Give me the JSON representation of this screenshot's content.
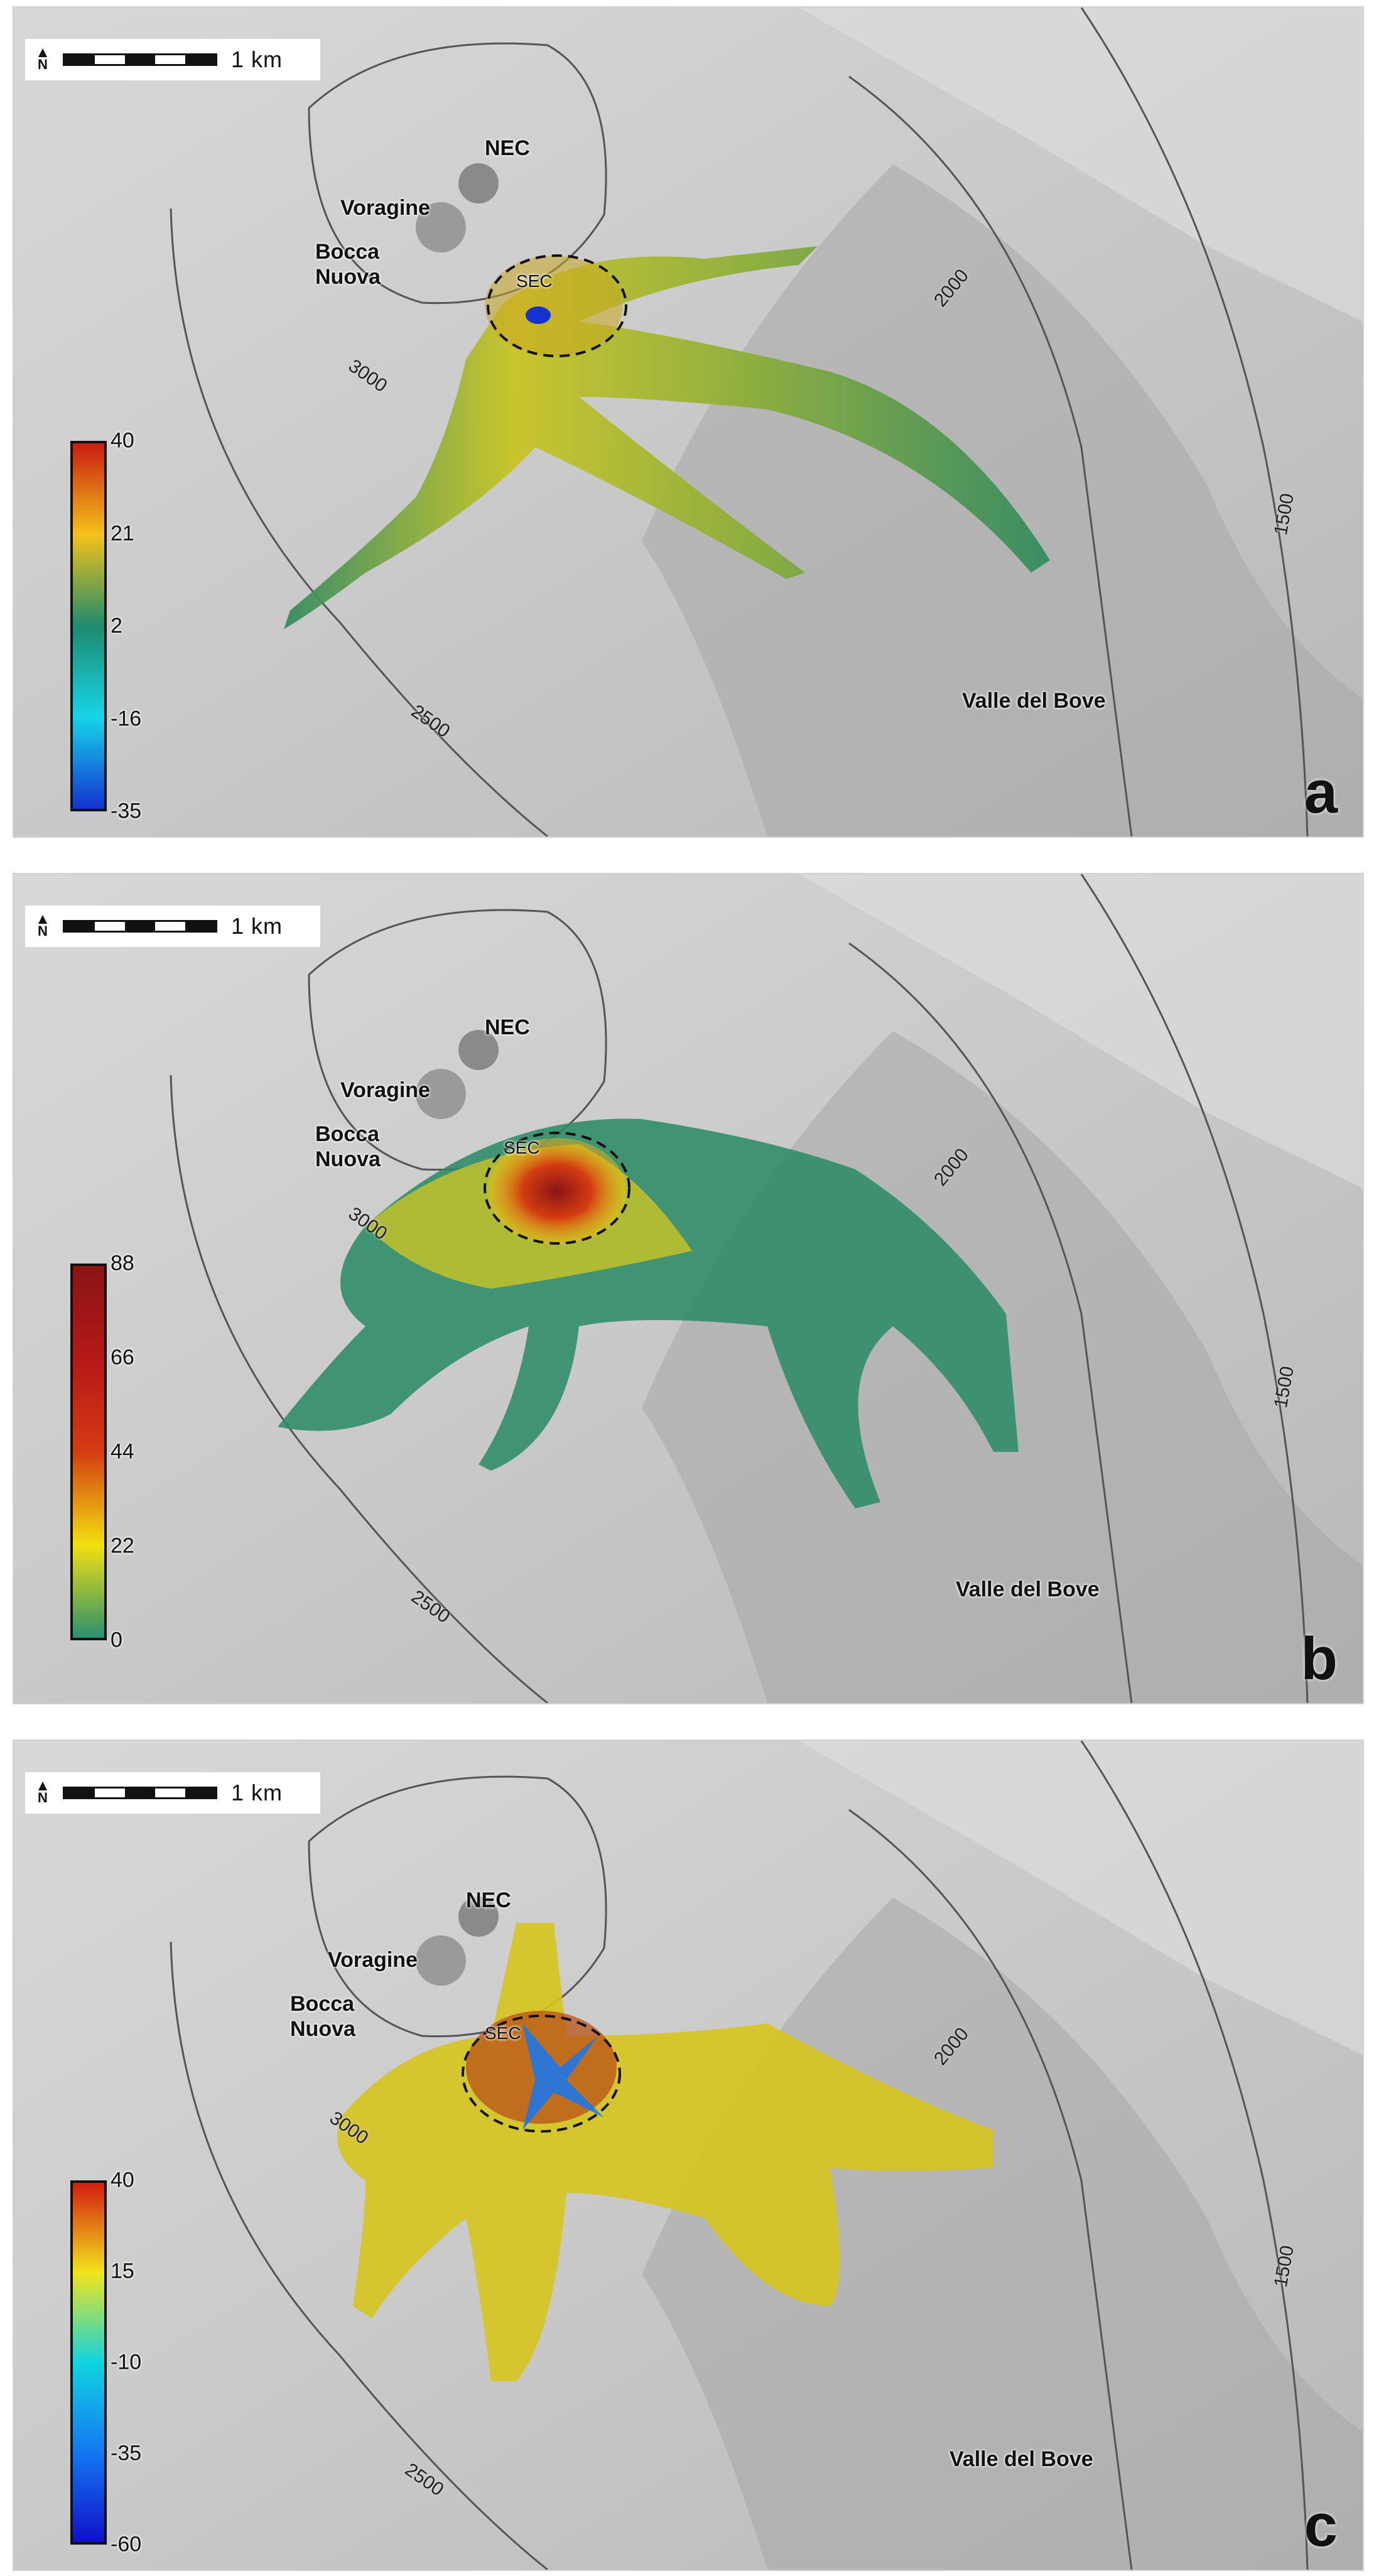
{
  "scale": {
    "label": "1 km",
    "north": "N"
  },
  "labels": {
    "nec": "NEC",
    "voragine": "Voragine",
    "bocca": "Bocca",
    "nuova": "Nuova",
    "sec": "SEC",
    "valle": "Valle del Bove"
  },
  "contours": {
    "c3000": "3000",
    "c2500": "2500",
    "c2000": "2000",
    "c1500": "1500"
  },
  "panels": [
    {
      "letter": "a",
      "legend": {
        "ticks": [
          "40",
          "21",
          "2",
          "-16",
          "-35"
        ],
        "colors": [
          "#c81c10",
          "#f4c21a",
          "#1f8a6e",
          "#16d4e8",
          "#1432d2"
        ]
      }
    },
    {
      "letter": "b",
      "legend": {
        "ticks": [
          "88",
          "66",
          "44",
          "22",
          "0"
        ],
        "colors": [
          "#8a1414",
          "#b41818",
          "#d43c12",
          "#f2e010",
          "#2a9070"
        ]
      }
    },
    {
      "letter": "c",
      "legend": {
        "ticks": [
          "40",
          "15",
          "-10",
          "-35",
          "-60"
        ],
        "colors": [
          "#d41c10",
          "#f2e41c",
          "#10d4e0",
          "#1478f2",
          "#1010c8"
        ]
      }
    }
  ]
}
